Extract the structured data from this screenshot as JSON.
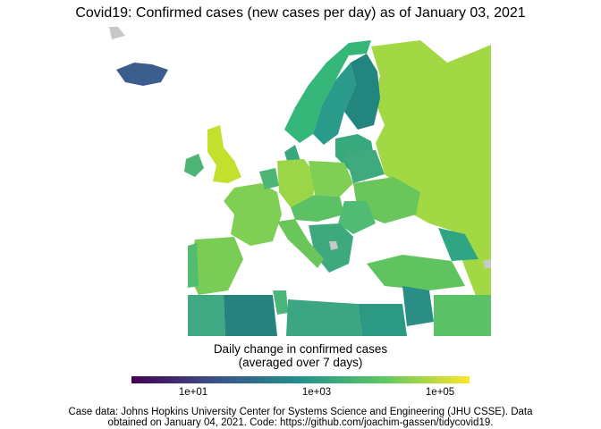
{
  "title": "Covid19: Confirmed cases (new cases per day) as of January 03, 2021",
  "legend": {
    "title_line1": "Daily change in confirmed cases",
    "title_line2": "(averaged over 7 days)",
    "scale": "log10",
    "colormap": "viridis",
    "colors": [
      "#440154",
      "#3b528b",
      "#21918c",
      "#5ec962",
      "#fde725"
    ],
    "ticks": [
      {
        "label": "1e+01",
        "value": 10
      },
      {
        "label": "1e+03",
        "value": 1000
      },
      {
        "label": "1e+05",
        "value": 100000
      }
    ],
    "range": [
      1,
      300000
    ]
  },
  "caption_line1": "Case data: Johns Hopkins University Center for Systems Science and Engineering (JHU CSSE). Data",
  "caption_line2": "obtained on January 04, 2021. Code: https://github.com/joachim-gassen/tidycovid19.",
  "colors": {
    "background": "#ffffff",
    "no_data": "#c8c8c8"
  }
}
